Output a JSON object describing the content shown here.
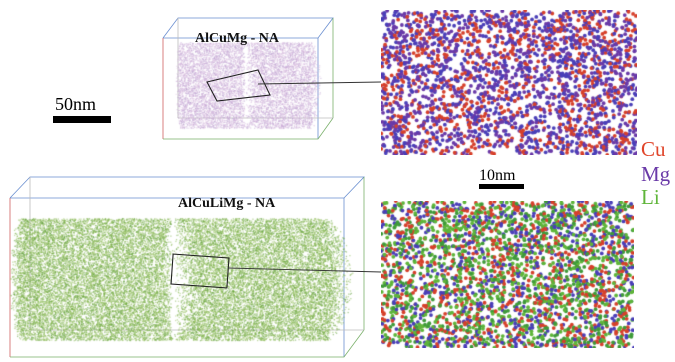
{
  "top_sample": {
    "label": "AlCuMg - NA",
    "colors": [
      "#c9a8d6",
      "#d9bde0",
      "#b9a2cf",
      "#e0c7e3"
    ]
  },
  "bottom_sample": {
    "label": "AlCuLiMg - NA",
    "colors": [
      "#7fb04a",
      "#5e9e3a",
      "#8dbc55",
      "#a4c972"
    ]
  },
  "scale_bar_large": {
    "label": "50nm"
  },
  "scale_bar_small": {
    "label": "10nm"
  },
  "legend": [
    {
      "label": "Cu",
      "color": "#e0452a"
    },
    {
      "label": "Mg",
      "color": "#6a3aa8"
    },
    {
      "label": "Li",
      "color": "#5fb53a"
    }
  ],
  "zoom_top": {
    "colors": [
      "#d6402b",
      "#4a3fb8",
      "#6a3aa8"
    ]
  },
  "zoom_bottom": {
    "colors": [
      "#d6402b",
      "#5fb53a",
      "#4a3fb8",
      "#3f9a3a"
    ]
  }
}
